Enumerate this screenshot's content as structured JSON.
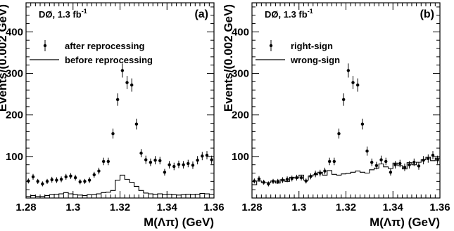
{
  "chart_data": [
    {
      "type": "scatter",
      "panel_label": "(a)",
      "experiment_label": "DØ, 1.3 fb",
      "experiment_label_sup": "-1",
      "xlabel": "M(Λπ) (GeV)",
      "ylabel": "Events/(0.002 GeV)",
      "xlim": [
        1.28,
        1.36
      ],
      "ylim": [
        0,
        470
      ],
      "x_ticks": [
        1.28,
        1.3,
        1.32,
        1.34,
        1.36
      ],
      "x_tick_labels": [
        "1.28",
        "1.3",
        "1.32",
        "1.34",
        "1.36"
      ],
      "y_ticks": [
        100,
        200,
        300,
        400
      ],
      "y_tick_labels": [
        "100",
        "200",
        "300",
        "400"
      ],
      "legend": {
        "placement": "top-left",
        "entries": [
          {
            "label": "after reprocessing",
            "style": "points"
          },
          {
            "label": "before reprocessing",
            "style": "histogram"
          }
        ]
      },
      "series": [
        {
          "name": "after reprocessing",
          "style": "points",
          "x": [
            1.281,
            1.283,
            1.285,
            1.287,
            1.289,
            1.291,
            1.293,
            1.295,
            1.297,
            1.299,
            1.301,
            1.303,
            1.305,
            1.307,
            1.309,
            1.311,
            1.313,
            1.315,
            1.317,
            1.319,
            1.321,
            1.323,
            1.325,
            1.327,
            1.329,
            1.331,
            1.333,
            1.335,
            1.337,
            1.339,
            1.341,
            1.343,
            1.345,
            1.347,
            1.349,
            1.351,
            1.353,
            1.355,
            1.357,
            1.359
          ],
          "y": [
            41,
            51,
            40,
            34,
            40,
            44,
            43,
            45,
            51,
            53,
            49,
            39,
            40,
            43,
            56,
            65,
            88,
            88,
            155,
            237,
            307,
            278,
            272,
            178,
            108,
            92,
            86,
            91,
            90,
            62,
            80,
            76,
            81,
            80,
            83,
            79,
            91,
            101,
            103,
            92
          ],
          "yerr": [
            6,
            7,
            6,
            6,
            6,
            7,
            7,
            7,
            7,
            7,
            7,
            6,
            6,
            7,
            7,
            8,
            9,
            9,
            12,
            15,
            17,
            16,
            16,
            13,
            10,
            10,
            9,
            10,
            9,
            8,
            9,
            9,
            9,
            9,
            9,
            9,
            10,
            10,
            10,
            10
          ]
        },
        {
          "name": "before reprocessing",
          "style": "histogram",
          "x": [
            1.281,
            1.283,
            1.285,
            1.287,
            1.289,
            1.291,
            1.293,
            1.295,
            1.297,
            1.299,
            1.301,
            1.303,
            1.305,
            1.307,
            1.309,
            1.311,
            1.313,
            1.315,
            1.317,
            1.319,
            1.321,
            1.323,
            1.325,
            1.327,
            1.329,
            1.331,
            1.333,
            1.335,
            1.337,
            1.339,
            1.341,
            1.343,
            1.345,
            1.347,
            1.349,
            1.351,
            1.353,
            1.355,
            1.357,
            1.359
          ],
          "y": [
            4,
            6,
            4,
            4,
            6,
            8,
            9,
            10,
            13,
            10,
            8,
            7,
            6,
            8,
            8,
            10,
            13,
            14,
            18,
            43,
            55,
            45,
            38,
            28,
            18,
            12,
            10,
            9,
            10,
            8,
            9,
            8,
            7,
            8,
            9,
            8,
            9,
            11,
            10,
            9
          ]
        }
      ]
    },
    {
      "type": "scatter",
      "panel_label": "(b)",
      "experiment_label": "DØ, 1.3 fb",
      "experiment_label_sup": "-1",
      "xlabel": "M(Λπ) (GeV)",
      "ylabel": "Events/(0.002 GeV)",
      "xlim": [
        1.28,
        1.36
      ],
      "ylim": [
        0,
        470
      ],
      "x_ticks": [
        1.28,
        1.3,
        1.32,
        1.34,
        1.36
      ],
      "x_tick_labels": [
        "1.28",
        "1.3",
        "1.32",
        "1.34",
        "1.36"
      ],
      "y_ticks": [
        100,
        200,
        300,
        400
      ],
      "y_tick_labels": [
        "100",
        "200",
        "300",
        "400"
      ],
      "legend": {
        "placement": "top-left",
        "entries": [
          {
            "label": "right-sign",
            "style": "points"
          },
          {
            "label": "wrong-sign",
            "style": "histogram"
          }
        ]
      },
      "series": [
        {
          "name": "right-sign",
          "style": "points",
          "x": [
            1.281,
            1.283,
            1.285,
            1.287,
            1.289,
            1.291,
            1.293,
            1.295,
            1.297,
            1.299,
            1.301,
            1.303,
            1.305,
            1.307,
            1.309,
            1.311,
            1.313,
            1.315,
            1.317,
            1.319,
            1.321,
            1.323,
            1.325,
            1.327,
            1.329,
            1.331,
            1.333,
            1.335,
            1.337,
            1.339,
            1.341,
            1.343,
            1.345,
            1.347,
            1.349,
            1.351,
            1.353,
            1.355,
            1.357,
            1.359
          ],
          "y": [
            41,
            46,
            38,
            34,
            40,
            40,
            43,
            45,
            47,
            49,
            49,
            41,
            52,
            58,
            60,
            65,
            88,
            88,
            155,
            237,
            307,
            278,
            272,
            178,
            113,
            86,
            78,
            92,
            88,
            62,
            80,
            83,
            74,
            80,
            86,
            77,
            91,
            95,
            103,
            92
          ],
          "yerr": [
            6,
            7,
            6,
            6,
            6,
            6,
            7,
            7,
            7,
            7,
            7,
            6,
            7,
            8,
            8,
            8,
            9,
            9,
            12,
            15,
            17,
            16,
            16,
            13,
            11,
            9,
            9,
            10,
            9,
            8,
            9,
            9,
            9,
            9,
            9,
            9,
            10,
            10,
            10,
            10
          ]
        },
        {
          "name": "wrong-sign",
          "style": "histogram",
          "x": [
            1.281,
            1.283,
            1.285,
            1.287,
            1.289,
            1.291,
            1.293,
            1.295,
            1.297,
            1.299,
            1.301,
            1.303,
            1.305,
            1.307,
            1.309,
            1.311,
            1.313,
            1.315,
            1.317,
            1.319,
            1.321,
            1.323,
            1.325,
            1.327,
            1.329,
            1.331,
            1.333,
            1.335,
            1.337,
            1.339,
            1.341,
            1.343,
            1.345,
            1.347,
            1.349,
            1.351,
            1.353,
            1.355,
            1.357,
            1.359
          ],
          "y": [
            32,
            41,
            37,
            37,
            41,
            36,
            44,
            40,
            50,
            48,
            55,
            43,
            53,
            56,
            62,
            55,
            66,
            57,
            55,
            58,
            59,
            62,
            65,
            62,
            60,
            68,
            72,
            82,
            75,
            71,
            84,
            78,
            70,
            85,
            80,
            86,
            92,
            98,
            90,
            96
          ]
        }
      ]
    }
  ]
}
